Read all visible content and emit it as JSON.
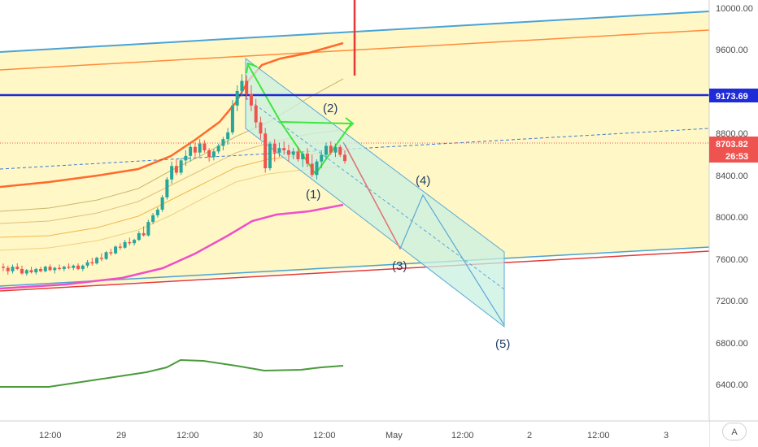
{
  "chart_data": {
    "type": "candlestick",
    "price_scale": {
      "range": [
        6150,
        10070
      ],
      "ticks": [
        "10000.00",
        "9600.00",
        "8800.00",
        "8400.00",
        "8000.00",
        "7600.00",
        "7200.00",
        "6800.00",
        "6400.00"
      ],
      "current_price": "8703.82",
      "countdown": "26:53",
      "level_label": "9173.69"
    },
    "time_axis": {
      "labels": [
        "12:00",
        "29",
        "12:00",
        "30",
        "12:00",
        "May",
        "12:00",
        "2",
        "12:00",
        "3"
      ]
    },
    "wave_labels": [
      "(1)",
      "(2)",
      "(3)",
      "(4)",
      "(5)"
    ],
    "candles": [
      {
        "o": 7760,
        "h": 7790,
        "l": 7720,
        "c": 7750
      },
      {
        "o": 7750,
        "h": 7770,
        "l": 7690,
        "c": 7720
      },
      {
        "o": 7720,
        "h": 7780,
        "l": 7700,
        "c": 7760
      },
      {
        "o": 7760,
        "h": 7790,
        "l": 7730,
        "c": 7740
      },
      {
        "o": 7740,
        "h": 7770,
        "l": 7690,
        "c": 7700
      },
      {
        "o": 7700,
        "h": 7740,
        "l": 7680,
        "c": 7730
      },
      {
        "o": 7730,
        "h": 7760,
        "l": 7700,
        "c": 7710
      },
      {
        "o": 7710,
        "h": 7750,
        "l": 7690,
        "c": 7740
      },
      {
        "o": 7740,
        "h": 7760,
        "l": 7710,
        "c": 7720
      },
      {
        "o": 7720,
        "h": 7770,
        "l": 7710,
        "c": 7760
      },
      {
        "o": 7760,
        "h": 7780,
        "l": 7720,
        "c": 7730
      },
      {
        "o": 7730,
        "h": 7760,
        "l": 7700,
        "c": 7750
      },
      {
        "o": 7750,
        "h": 7780,
        "l": 7730,
        "c": 7740
      },
      {
        "o": 7740,
        "h": 7770,
        "l": 7720,
        "c": 7760
      },
      {
        "o": 7760,
        "h": 7790,
        "l": 7740,
        "c": 7750
      },
      {
        "o": 7750,
        "h": 7780,
        "l": 7730,
        "c": 7770
      },
      {
        "o": 7770,
        "h": 7790,
        "l": 7730,
        "c": 7740
      },
      {
        "o": 7740,
        "h": 7780,
        "l": 7720,
        "c": 7770
      },
      {
        "o": 7770,
        "h": 7820,
        "l": 7750,
        "c": 7800
      },
      {
        "o": 7800,
        "h": 7840,
        "l": 7770,
        "c": 7790
      },
      {
        "o": 7790,
        "h": 7850,
        "l": 7780,
        "c": 7840
      },
      {
        "o": 7840,
        "h": 7880,
        "l": 7810,
        "c": 7830
      },
      {
        "o": 7830,
        "h": 7900,
        "l": 7820,
        "c": 7890
      },
      {
        "o": 7890,
        "h": 7920,
        "l": 7860,
        "c": 7880
      },
      {
        "o": 7880,
        "h": 7950,
        "l": 7870,
        "c": 7940
      },
      {
        "o": 7940,
        "h": 7970,
        "l": 7910,
        "c": 7930
      },
      {
        "o": 7930,
        "h": 8000,
        "l": 7920,
        "c": 7980
      },
      {
        "o": 7980,
        "h": 8020,
        "l": 7950,
        "c": 7970
      },
      {
        "o": 7970,
        "h": 8010,
        "l": 7950,
        "c": 8000
      },
      {
        "o": 8000,
        "h": 8080,
        "l": 7990,
        "c": 8060
      },
      {
        "o": 8060,
        "h": 8120,
        "l": 8030,
        "c": 8040
      },
      {
        "o": 8040,
        "h": 8180,
        "l": 8030,
        "c": 8160
      },
      {
        "o": 8160,
        "h": 8240,
        "l": 8140,
        "c": 8220
      },
      {
        "o": 8220,
        "h": 8290,
        "l": 8200,
        "c": 8270
      },
      {
        "o": 8270,
        "h": 8400,
        "l": 8250,
        "c": 8380
      },
      {
        "o": 8380,
        "h": 8560,
        "l": 8360,
        "c": 8540
      },
      {
        "o": 8540,
        "h": 8700,
        "l": 8500,
        "c": 8660
      },
      {
        "o": 8660,
        "h": 8720,
        "l": 8580,
        "c": 8600
      },
      {
        "o": 8600,
        "h": 8730,
        "l": 8580,
        "c": 8710
      },
      {
        "o": 8710,
        "h": 8800,
        "l": 8660,
        "c": 8750
      },
      {
        "o": 8750,
        "h": 8860,
        "l": 8700,
        "c": 8830
      },
      {
        "o": 8830,
        "h": 8870,
        "l": 8740,
        "c": 8780
      },
      {
        "o": 8780,
        "h": 8900,
        "l": 8750,
        "c": 8860
      },
      {
        "o": 8860,
        "h": 8890,
        "l": 8780,
        "c": 8800
      },
      {
        "o": 8800,
        "h": 8820,
        "l": 8700,
        "c": 8740
      },
      {
        "o": 8740,
        "h": 8810,
        "l": 8710,
        "c": 8790
      },
      {
        "o": 8790,
        "h": 8860,
        "l": 8770,
        "c": 8840
      },
      {
        "o": 8840,
        "h": 8920,
        "l": 8800,
        "c": 8900
      },
      {
        "o": 8900,
        "h": 9000,
        "l": 8850,
        "c": 8960
      },
      {
        "o": 8960,
        "h": 9250,
        "l": 8940,
        "c": 9200
      },
      {
        "o": 9200,
        "h": 9380,
        "l": 9150,
        "c": 9330
      },
      {
        "o": 9330,
        "h": 9480,
        "l": 9280,
        "c": 9420
      },
      {
        "o": 9420,
        "h": 9470,
        "l": 9250,
        "c": 9300
      },
      {
        "o": 9300,
        "h": 9380,
        "l": 9150,
        "c": 9200
      },
      {
        "o": 9200,
        "h": 9260,
        "l": 9000,
        "c": 9050
      },
      {
        "o": 9050,
        "h": 9100,
        "l": 8900,
        "c": 8950
      },
      {
        "o": 8950,
        "h": 9000,
        "l": 8600,
        "c": 8640
      },
      {
        "o": 8640,
        "h": 8880,
        "l": 8620,
        "c": 8860
      },
      {
        "o": 8860,
        "h": 8900,
        "l": 8700,
        "c": 8780
      },
      {
        "o": 8780,
        "h": 8870,
        "l": 8740,
        "c": 8820
      },
      {
        "o": 8820,
        "h": 8880,
        "l": 8760,
        "c": 8800
      },
      {
        "o": 8800,
        "h": 8850,
        "l": 8700,
        "c": 8760
      },
      {
        "o": 8760,
        "h": 8820,
        "l": 8720,
        "c": 8790
      },
      {
        "o": 8790,
        "h": 8830,
        "l": 8700,
        "c": 8720
      },
      {
        "o": 8720,
        "h": 8790,
        "l": 8650,
        "c": 8770
      },
      {
        "o": 8770,
        "h": 8820,
        "l": 8650,
        "c": 8680
      },
      {
        "o": 8680,
        "h": 8760,
        "l": 8560,
        "c": 8580
      },
      {
        "o": 8580,
        "h": 8720,
        "l": 8540,
        "c": 8700
      },
      {
        "o": 8700,
        "h": 8800,
        "l": 8640,
        "c": 8760
      },
      {
        "o": 8760,
        "h": 8870,
        "l": 8720,
        "c": 8840
      },
      {
        "o": 8840,
        "h": 8880,
        "l": 8760,
        "c": 8780
      },
      {
        "o": 8780,
        "h": 8860,
        "l": 8740,
        "c": 8830
      },
      {
        "o": 8830,
        "h": 8850,
        "l": 8740,
        "c": 8760
      },
      {
        "o": 8760,
        "h": 8800,
        "l": 8680,
        "c": 8704
      }
    ],
    "colors": {
      "up": "#26a69a",
      "down": "#ef5350",
      "band_fill": "#fff7c6",
      "level_line": "#1e2bd6",
      "price_badge": "#ef5350",
      "level_badge": "#1e2bd6",
      "channel": "#5aa9d6",
      "channel_fill": "#c9f0e2",
      "pattern": "#3ee63e",
      "ma_fast": "#ff6a2a",
      "ma_mid": "#f2b74a",
      "ma_pink": "#ef4fc8",
      "oscillator": "#4a9a3a"
    }
  }
}
